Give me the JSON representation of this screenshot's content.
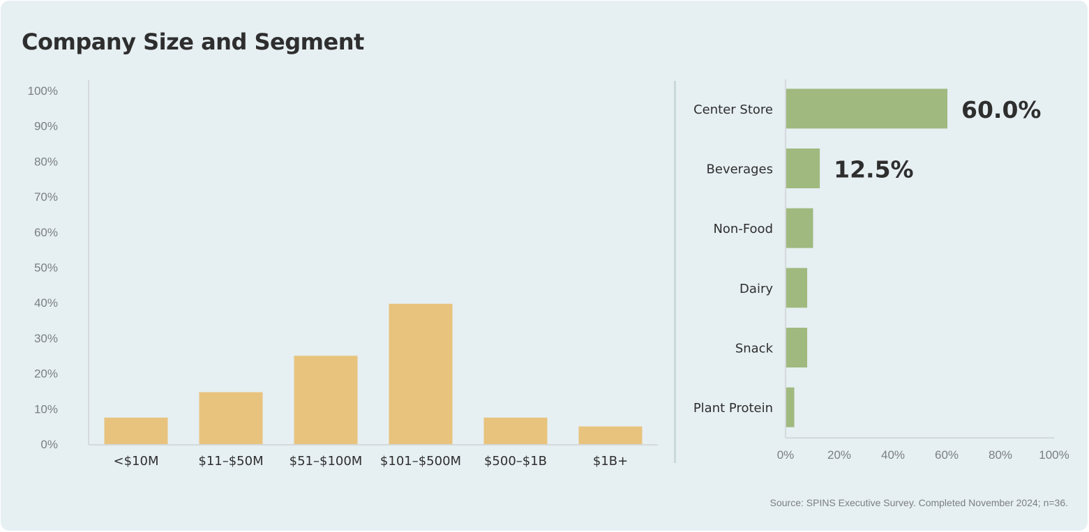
{
  "title": "Company Size and Segment",
  "source": "Source: SPINS Executive Survey. Completed November 2024; n=36.",
  "colors": {
    "background": "#e6eff2",
    "size_bar": "#e8c37d",
    "segment_bar": "#a0b97f",
    "text": "#2e2e2e",
    "tick": "#7a7f82",
    "axis": "#d4d9db"
  },
  "chart_data": [
    {
      "type": "bar",
      "title": "",
      "categories": [
        "<$10M",
        "$11–$50M",
        "$51–$100M",
        "$101–$500M",
        "$500–$1B",
        "$1B+"
      ],
      "values": [
        7.5,
        14.7,
        25,
        39.7,
        7.5,
        5
      ],
      "yticks": [
        "0%",
        "10%",
        "20%",
        "30%",
        "40%",
        "50%",
        "60%",
        "70%",
        "80%",
        "90%",
        "100%"
      ],
      "ylim": [
        0,
        100
      ],
      "xlabel": "",
      "ylabel": "",
      "grid": false
    },
    {
      "type": "bar",
      "orientation": "horizontal",
      "title": "",
      "categories": [
        "Center Store",
        "Beverages",
        "Non-Food",
        "Dairy",
        "Snack",
        "Plant Protein"
      ],
      "values": [
        60.0,
        12.5,
        10,
        7.8,
        7.8,
        3
      ],
      "data_labels": [
        "60.0%",
        "12.5%",
        "",
        "",
        "",
        ""
      ],
      "xticks": [
        "0%",
        "20%",
        "40%",
        "60%",
        "80%",
        "100%"
      ],
      "xlim": [
        0,
        100
      ],
      "xlabel": "",
      "ylabel": "",
      "grid": false
    }
  ]
}
